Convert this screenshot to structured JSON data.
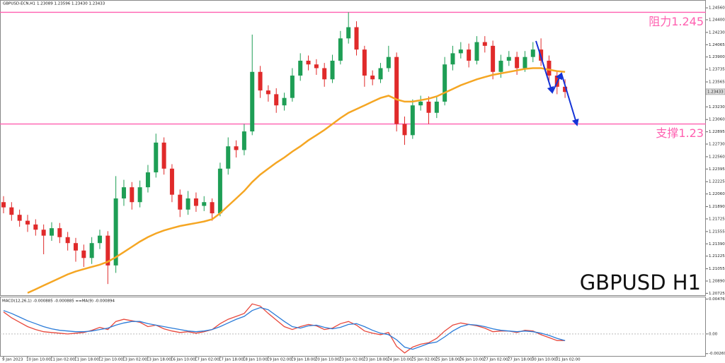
{
  "chart_data": [
    {
      "type": "candlestick",
      "title": "GBPUSD-ECN,H1",
      "subtitle": "1.23089 1.23596 1.23430 1.23433",
      "watermark": "GBPUSD H1",
      "categories": [
        "9 Jan 2023",
        null,
        null,
        "10 Jan 10:00",
        null,
        null,
        "11 Jan 02:00",
        null,
        null,
        "11 Jan 18:00",
        null,
        null,
        "12 Jan 10:00",
        null,
        null,
        "13 Jan 02:00",
        null,
        null,
        "13 Jan 18:00",
        null,
        null,
        "16 Jan 10:00",
        null,
        null,
        "17 Jan 02:00",
        null,
        null,
        "17 Jan 18:00",
        null,
        null,
        "18 Jan 10:00",
        null,
        null,
        "19 Jan 02:00",
        null,
        null,
        "19 Jan 18:00",
        null,
        null,
        "20 Jan 10:00",
        null,
        null,
        "23 Jan 02:00",
        null,
        null,
        "23 Jan 18:00",
        null,
        null,
        "24 Jan 10:00",
        null,
        null,
        "25 Jan 02:00",
        null,
        null,
        "25 Jan 18:00",
        null,
        null,
        "26 Jan 10:00",
        null,
        null,
        "27 Jan 02:00",
        null,
        null,
        "27 Jan 18:00",
        null,
        null,
        "30 Jan 10:00",
        null,
        null,
        "31 Jan 02:00",
        null
      ],
      "open": [
        1.2195,
        1.2188,
        1.2178,
        1.217,
        1.2165,
        1.2158,
        1.215,
        1.216,
        1.2148,
        1.214,
        1.213,
        1.212,
        1.214,
        1.215,
        1.211,
        1.22,
        1.2215,
        1.2195,
        1.2215,
        1.2235,
        1.2275,
        1.224,
        1.2205,
        1.2185,
        1.22,
        1.219,
        1.2195,
        1.218,
        1.224,
        1.227,
        1.2265,
        1.229,
        1.237,
        1.2345,
        1.234,
        1.2325,
        1.2335,
        1.2365,
        1.2385,
        1.238,
        1.2375,
        1.236,
        1.2385,
        1.2415,
        1.243,
        1.24,
        1.2365,
        1.236,
        1.2375,
        1.239,
        1.23,
        1.2285,
        1.2325,
        1.233,
        1.2315,
        1.233,
        1.238,
        1.2395,
        1.24,
        1.2385,
        1.241,
        1.2405,
        1.237,
        1.2385,
        1.239,
        1.2375,
        1.239,
        1.24,
        1.2385,
        1.2365,
        1.235
      ],
      "high": [
        1.2203,
        1.2195,
        1.2185,
        1.2178,
        1.2172,
        1.2165,
        1.2168,
        1.2167,
        1.2155,
        1.2147,
        1.2138,
        1.2148,
        1.2158,
        1.2156,
        1.223,
        1.2225,
        1.2222,
        1.2224,
        1.2245,
        1.2287,
        1.2282,
        1.2246,
        1.2212,
        1.221,
        1.2208,
        1.2203,
        1.22,
        1.2248,
        1.2282,
        1.2278,
        1.23,
        1.242,
        1.2378,
        1.2352,
        1.2348,
        1.2342,
        1.2375,
        1.2395,
        1.2392,
        1.2387,
        1.2382,
        1.2393,
        1.2425,
        1.245,
        1.2438,
        1.2405,
        1.2372,
        1.2382,
        1.2405,
        1.2396,
        1.231,
        1.2333,
        1.2338,
        1.2337,
        1.2338,
        1.239,
        1.2405,
        1.241,
        1.2408,
        1.2418,
        1.2418,
        1.2412,
        1.2393,
        1.2398,
        1.2397,
        1.2398,
        1.241,
        1.2415,
        1.2392,
        1.2372,
        1.236
      ],
      "low": [
        1.218,
        1.217,
        1.2162,
        1.2155,
        1.215,
        1.2125,
        1.2143,
        1.214,
        1.213,
        1.2115,
        1.2108,
        1.2112,
        1.2132,
        1.2085,
        1.21,
        1.219,
        1.2185,
        1.2188,
        1.2208,
        1.2228,
        1.2232,
        1.2195,
        1.2175,
        1.2178,
        1.2182,
        1.2183,
        1.217,
        1.2176,
        1.2232,
        1.2255,
        1.2258,
        1.2285,
        1.2335,
        1.233,
        1.2315,
        1.2318,
        1.233,
        1.2358,
        1.2372,
        1.2366,
        1.235,
        1.2355,
        1.238,
        1.2408,
        1.2392,
        1.235,
        1.2352,
        1.2355,
        1.237,
        1.229,
        1.2272,
        1.228,
        1.2318,
        1.23,
        1.2308,
        1.2325,
        1.2372,
        1.2388,
        1.2376,
        1.238,
        1.2396,
        1.236,
        1.2362,
        1.2378,
        1.2366,
        1.237,
        1.2383,
        1.2378,
        1.2355,
        1.234,
        1.2335
      ],
      "close": [
        1.2188,
        1.2178,
        1.217,
        1.2165,
        1.2158,
        1.215,
        1.216,
        1.2148,
        1.214,
        1.213,
        1.212,
        1.214,
        1.215,
        1.211,
        1.22,
        1.2215,
        1.2195,
        1.2215,
        1.2235,
        1.2275,
        1.224,
        1.2205,
        1.2185,
        1.22,
        1.219,
        1.2195,
        1.218,
        1.224,
        1.227,
        1.2265,
        1.229,
        1.237,
        1.2345,
        1.234,
        1.2325,
        1.2335,
        1.2365,
        1.2385,
        1.238,
        1.2375,
        1.236,
        1.2385,
        1.2415,
        1.243,
        1.24,
        1.2365,
        1.236,
        1.2375,
        1.239,
        1.23,
        1.2285,
        1.2325,
        1.233,
        1.2315,
        1.233,
        1.238,
        1.2395,
        1.24,
        1.2385,
        1.241,
        1.2405,
        1.237,
        1.2385,
        1.239,
        1.2375,
        1.239,
        1.24,
        1.2385,
        1.2365,
        1.235,
        1.2343
      ],
      "ma_values": [
        null,
        null,
        null,
        1.2073,
        1.2078,
        1.2083,
        1.2088,
        1.2093,
        1.2098,
        1.2102,
        1.2105,
        1.2108,
        1.2111,
        1.2115,
        1.2121,
        1.2128,
        1.2135,
        1.2142,
        1.2148,
        1.2153,
        1.2157,
        1.216,
        1.2163,
        1.2165,
        1.2167,
        1.2169,
        1.2172,
        1.218,
        1.219,
        1.22,
        1.221,
        1.2222,
        1.2232,
        1.224,
        1.2248,
        1.2255,
        1.2263,
        1.227,
        1.2278,
        1.2285,
        1.2292,
        1.23,
        1.2308,
        1.2315,
        1.232,
        1.2325,
        1.233,
        1.2335,
        1.2338,
        1.2333,
        1.233,
        1.233,
        1.2332,
        1.2334,
        1.2337,
        1.2342,
        1.2347,
        1.2352,
        1.2356,
        1.236,
        1.2363,
        1.2366,
        1.2368,
        1.237,
        1.2372,
        1.2374,
        1.2375,
        1.2375,
        1.2373,
        1.2371,
        1.237
      ],
      "up_color": "#1e9e55",
      "down_color": "#e02a2a",
      "ma_color": "#f5a623",
      "ylim": [
        1.207,
        1.2458
      ],
      "yticks": [
        {
          "value": 1.2456,
          "label": "1.24560"
        },
        {
          "value": 1.244,
          "label": "1.24400"
        },
        {
          "value": 1.2423,
          "label": "1.24230"
        },
        {
          "value": 1.24065,
          "label": "1.24065"
        },
        {
          "value": 1.239,
          "label": "1.23900"
        },
        {
          "value": 1.23735,
          "label": "1.23735"
        },
        {
          "value": 1.23565,
          "label": "1.23565"
        },
        {
          "value": 1.2323,
          "label": "1.23230"
        },
        {
          "value": 1.2306,
          "label": "1.23060"
        },
        {
          "value": 1.22895,
          "label": "1.22895"
        },
        {
          "value": 1.2273,
          "label": "1.22730"
        },
        {
          "value": 1.2256,
          "label": "1.22560"
        },
        {
          "value": 1.22395,
          "label": "1.22395"
        },
        {
          "value": 1.22225,
          "label": "1.22225"
        },
        {
          "value": 1.2206,
          "label": "1.22060"
        },
        {
          "value": 1.2189,
          "label": "1.21890"
        },
        {
          "value": 1.21725,
          "label": "1.21725"
        },
        {
          "value": 1.21555,
          "label": "1.21555"
        },
        {
          "value": 1.2139,
          "label": "1.21390"
        },
        {
          "value": 1.21225,
          "label": "1.21225"
        },
        {
          "value": 1.21055,
          "label": "1.21055"
        },
        {
          "value": 1.2089,
          "label": "1.20890"
        },
        {
          "value": 1.20725,
          "label": "1.20725"
        }
      ],
      "last_price": {
        "value": 1.23433,
        "label": "1.23433"
      },
      "hlines": [
        {
          "value": 1.245,
          "label": "阻力1.245"
        },
        {
          "value": 1.23,
          "label": "支撑1.23"
        }
      ],
      "hline_color": "#ff5fb0"
    },
    {
      "type": "line",
      "title": "MACD(12,26,1) -0.000885 -0.000885 ==MA(9) -0.000894",
      "series": [
        {
          "color": "#e8483c",
          "values": [
            0.003,
            0.0022,
            0.0016,
            0.001,
            0.0006,
            0.0003,
            0.0002,
            0.0001,
            0.0,
            0.0001,
            0.0002,
            0.0005,
            0.0009,
            0.0006,
            0.0017,
            0.002,
            0.0018,
            0.0016,
            0.001,
            0.0012,
            0.0007,
            0.0004,
            0.0002,
            0.0003,
            0.0001,
            0.0003,
            0.0006,
            0.0014,
            0.002,
            0.0024,
            0.0028,
            0.0041,
            0.0038,
            0.0028,
            0.0019,
            0.001,
            0.0006,
            0.001,
            0.0013,
            0.0011,
            0.0006,
            0.0008,
            0.0014,
            0.0017,
            0.0012,
            0.0004,
            0.0001,
            -0.0001,
            0.0002,
            -0.0017,
            -0.0026,
            -0.0018,
            -0.0014,
            -0.0012,
            -0.0006,
            0.0004,
            0.0012,
            0.0015,
            0.0013,
            0.0011,
            0.0008,
            0.0003,
            0.0004,
            0.0004,
            0.0002,
            0.0005,
            0.0004,
            -0.0001,
            -0.0005,
            -0.0009,
            -0.0009
          ]
        },
        {
          "color": "#2a7bd8",
          "values": [
            0.0032,
            0.0028,
            0.0023,
            0.0018,
            0.0014,
            0.001,
            0.0007,
            0.0005,
            0.0004,
            0.0003,
            0.0003,
            0.0004,
            0.0006,
            0.0008,
            0.0012,
            0.0015,
            0.0017,
            0.0017,
            0.0014,
            0.0012,
            0.001,
            0.0008,
            0.0006,
            0.0004,
            0.0003,
            0.0004,
            0.0006,
            0.001,
            0.0015,
            0.002,
            0.0024,
            0.0032,
            0.0036,
            0.0033,
            0.0025,
            0.0017,
            0.001,
            0.0008,
            0.0011,
            0.0012,
            0.0009,
            0.0007,
            0.0009,
            0.0013,
            0.0014,
            0.001,
            0.0005,
            0.0001,
            -0.0001,
            -0.0008,
            -0.0018,
            -0.0021,
            -0.0017,
            -0.0013,
            -0.0011,
            -0.0004,
            0.0004,
            0.001,
            0.0013,
            0.0012,
            0.001,
            0.0007,
            0.0005,
            0.0004,
            0.0003,
            0.0004,
            0.0003,
            0.0001,
            -0.0002,
            -0.0006,
            -0.0009
          ]
        }
      ],
      "ylim": [
        -0.0031,
        0.005
      ],
      "yticks": [
        {
          "value": 0.004762,
          "label": "0.004762"
        },
        {
          "value": 0,
          "label": "0.00"
        },
        {
          "value": -0.00269,
          "label": "-0.00269"
        }
      ]
    }
  ]
}
